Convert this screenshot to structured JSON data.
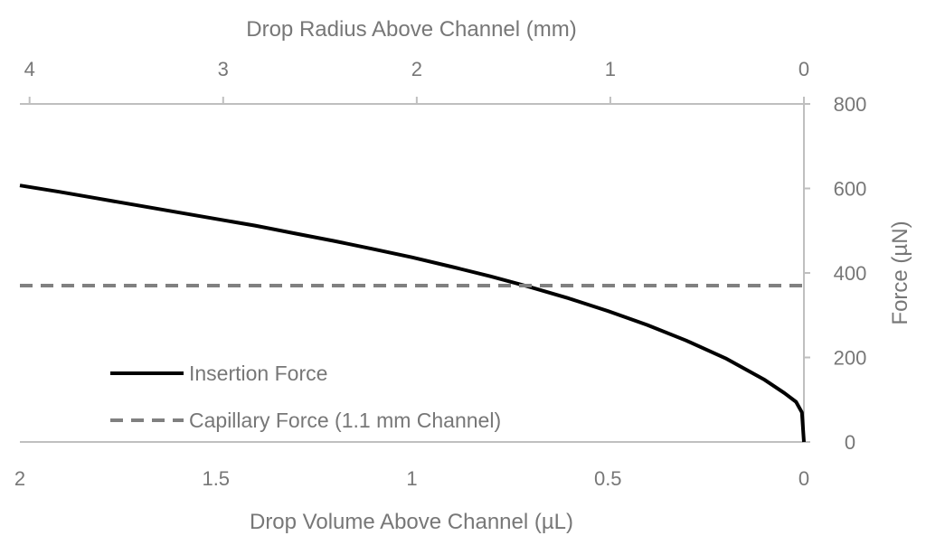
{
  "chart_data": {
    "type": "line",
    "title": "",
    "xlabel": "Drop Volume Above Channel (µL)",
    "x2label": "Drop Radius Above Channel (mm)",
    "ylabel": "Force (µN)",
    "xlim": [
      2,
      0
    ],
    "x_ticks": [
      "2",
      "1.5",
      "1",
      "0.5",
      "0"
    ],
    "x_tick_values": [
      2,
      1.5,
      1,
      0.5,
      0
    ],
    "x2lim": [
      4.05,
      0
    ],
    "x2_ticks": [
      "4",
      "3",
      "2",
      "1",
      "0"
    ],
    "x2_tick_values": [
      4,
      3,
      2,
      1,
      0
    ],
    "ylim": [
      0,
      800
    ],
    "y_ticks": [
      "0",
      "200",
      "400",
      "600",
      "800"
    ],
    "y_tick_values": [
      0,
      200,
      400,
      600,
      800
    ],
    "y_axis_side": "right",
    "grid": false,
    "legend_position": "bottom-left",
    "series": [
      {
        "name": "Insertion Force",
        "style": "solid",
        "color": "#000000",
        "x": [
          2.0,
          1.9,
          1.8,
          1.7,
          1.6,
          1.5,
          1.4,
          1.3,
          1.2,
          1.1,
          1.0,
          0.9,
          0.8,
          0.7,
          0.6,
          0.5,
          0.4,
          0.3,
          0.2,
          0.1,
          0.05,
          0.02,
          0.005,
          0.0
        ],
        "y": [
          607,
          592,
          576,
          560,
          544,
          528,
          512,
          494,
          476,
          457,
          437,
          415,
          392,
          367,
          340,
          310,
          277,
          240,
          198,
          147,
          116,
          95,
          70,
          0
        ]
      },
      {
        "name": "Capillary Force (1.1 mm Channel)",
        "style": "dashed",
        "color": "#808080",
        "x": [
          2.0,
          0.0
        ],
        "y": [
          370,
          370
        ]
      }
    ]
  }
}
